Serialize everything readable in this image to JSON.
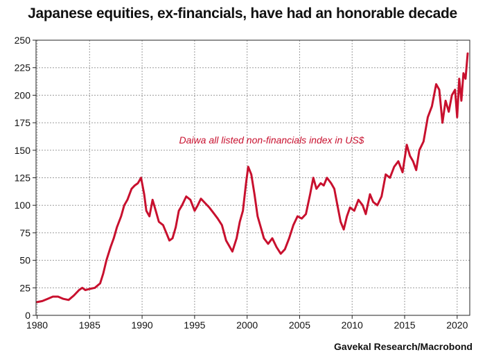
{
  "chart_data": {
    "type": "line",
    "title": "Japanese equities, ex-financials, have had an honorable decade",
    "xlabel": "",
    "ylabel": "",
    "xlim": [
      1979.9,
      2021.2
    ],
    "ylim": [
      0,
      250
    ],
    "x_ticks": [
      1980,
      1985,
      1990,
      1995,
      2000,
      2005,
      2010,
      2015,
      2020
    ],
    "y_ticks": [
      0,
      25,
      50,
      75,
      100,
      125,
      150,
      175,
      200,
      225,
      250
    ],
    "grid": true,
    "annotation": "Daiwa all listed non-financials index in US$",
    "source": "Gavekal Research/Macrobond",
    "series": [
      {
        "color": "#c8102e",
        "x": [
          1980.0,
          1980.5,
          1981.0,
          1981.5,
          1982.0,
          1982.5,
          1983.0,
          1983.5,
          1984.0,
          1984.3,
          1984.6,
          1985.0,
          1985.5,
          1986.0,
          1986.3,
          1986.6,
          1987.0,
          1987.3,
          1987.6,
          1988.0,
          1988.3,
          1988.6,
          1989.0,
          1989.3,
          1989.6,
          1989.9,
          1990.2,
          1990.4,
          1990.7,
          1991.0,
          1991.3,
          1991.6,
          1992.0,
          1992.3,
          1992.6,
          1992.9,
          1993.2,
          1993.5,
          1993.8,
          1994.2,
          1994.6,
          1995.0,
          1995.3,
          1995.6,
          1996.0,
          1996.4,
          1996.8,
          1997.2,
          1997.6,
          1998.0,
          1998.3,
          1998.6,
          1999.0,
          1999.3,
          1999.6,
          1999.9,
          2000.1,
          2000.4,
          2000.7,
          2001.0,
          2001.3,
          2001.6,
          2002.0,
          2002.4,
          2002.8,
          2003.2,
          2003.6,
          2004.0,
          2004.4,
          2004.8,
          2005.2,
          2005.6,
          2006.0,
          2006.3,
          2006.6,
          2007.0,
          2007.3,
          2007.6,
          2008.0,
          2008.3,
          2008.6,
          2008.9,
          2009.2,
          2009.5,
          2009.8,
          2010.2,
          2010.6,
          2011.0,
          2011.3,
          2011.7,
          2012.0,
          2012.4,
          2012.8,
          2013.2,
          2013.6,
          2014.0,
          2014.4,
          2014.8,
          2015.2,
          2015.5,
          2015.8,
          2016.1,
          2016.4,
          2016.8,
          2017.2,
          2017.6,
          2018.0,
          2018.3,
          2018.6,
          2018.9,
          2019.2,
          2019.5,
          2019.8,
          2020.0,
          2020.2,
          2020.4,
          2020.6,
          2020.8,
          2021.0
        ],
        "y": [
          12,
          13,
          15,
          17,
          17,
          15,
          14,
          18,
          23,
          25,
          23,
          24,
          25,
          29,
          38,
          50,
          62,
          70,
          80,
          90,
          100,
          105,
          115,
          118,
          120,
          125,
          110,
          95,
          90,
          105,
          95,
          85,
          82,
          75,
          68,
          70,
          80,
          95,
          100,
          108,
          105,
          95,
          100,
          106,
          102,
          98,
          93,
          88,
          82,
          68,
          63,
          58,
          70,
          85,
          95,
          120,
          135,
          128,
          110,
          90,
          80,
          70,
          65,
          70,
          62,
          56,
          60,
          70,
          82,
          90,
          88,
          92,
          110,
          125,
          115,
          120,
          118,
          125,
          120,
          115,
          100,
          85,
          78,
          90,
          98,
          95,
          105,
          100,
          92,
          110,
          103,
          100,
          108,
          128,
          125,
          135,
          140,
          130,
          155,
          145,
          140,
          132,
          150,
          158,
          180,
          190,
          210,
          205,
          175,
          195,
          185,
          200,
          205,
          180,
          215,
          195,
          220,
          215,
          238
        ]
      }
    ]
  }
}
